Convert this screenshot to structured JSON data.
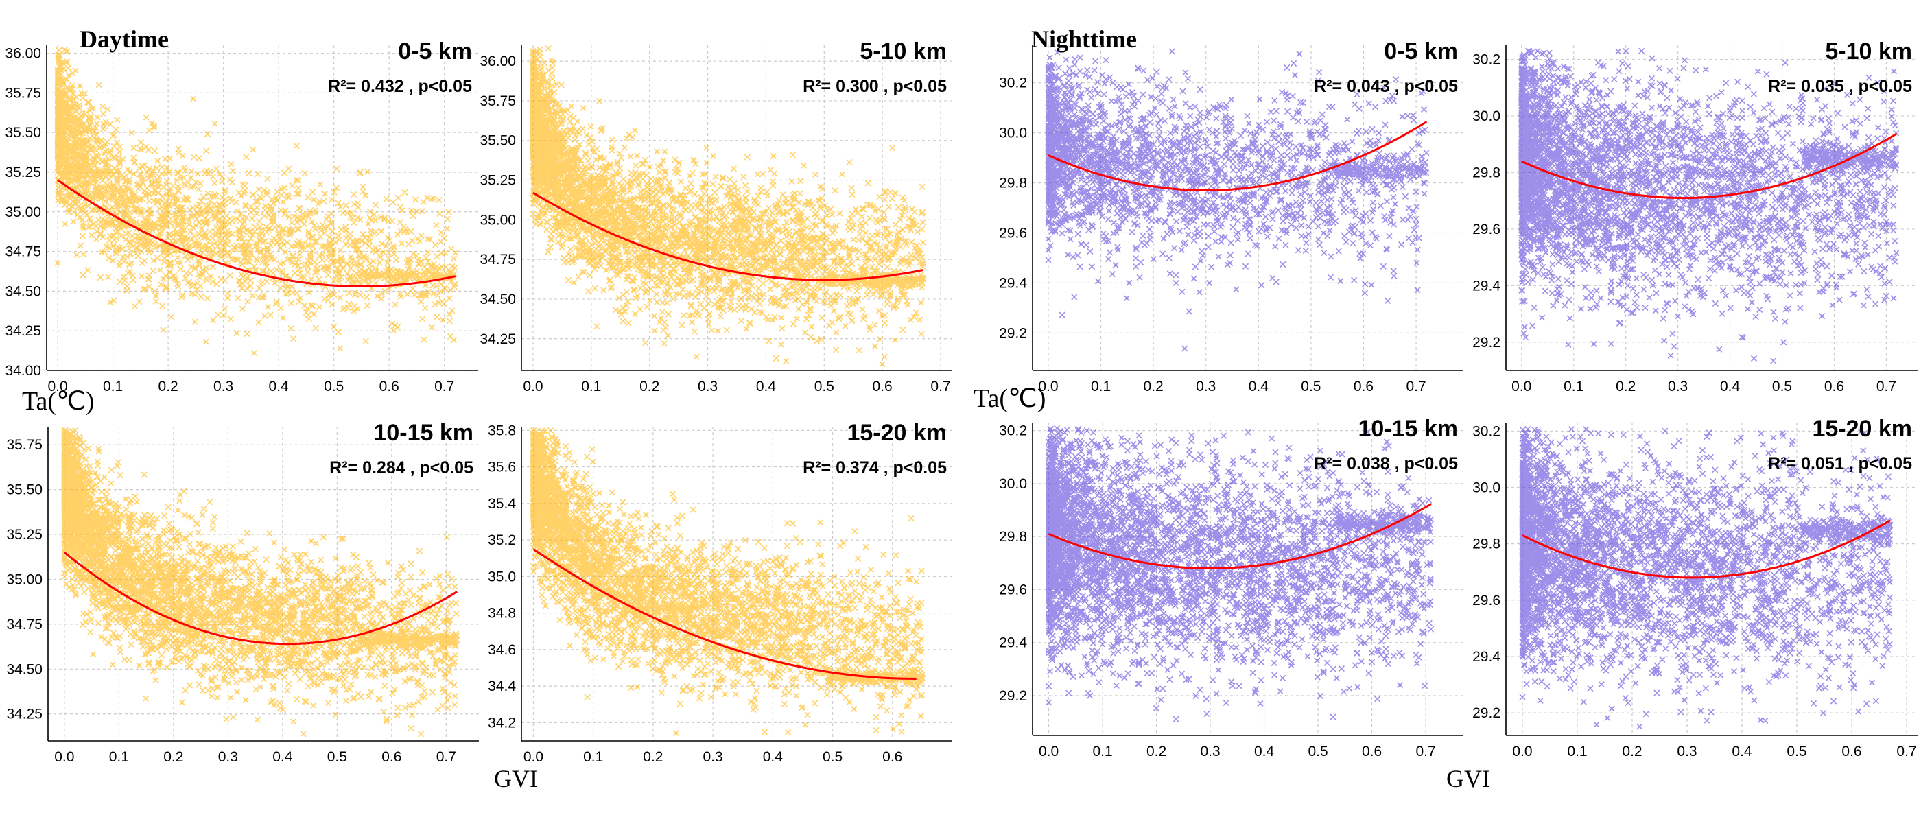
{
  "labels": {
    "daytime": "Daytime",
    "nighttime": "Nighttime",
    "ylabel": "Ta(℃)",
    "xlabel": "GVI"
  },
  "colors": {
    "day_points": "#FFB300",
    "night_points": "#5B45DB",
    "fit_line": "#FF0000",
    "grid": "#CCCCCC"
  },
  "chart_data": [
    {
      "type": "scatter",
      "group": "Daytime",
      "title": "0-5 km",
      "annotation": "R²= 0.432 , p<0.05",
      "xlim": [
        -0.02,
        0.76
      ],
      "ylim": [
        34.0,
        36.05
      ],
      "xticks": [
        "0.0",
        "0.1",
        "0.2",
        "0.3",
        "0.4",
        "0.5",
        "0.6",
        "0.7"
      ],
      "yticks": [
        "34.00",
        "34.25",
        "34.50",
        "34.75",
        "35.00",
        "35.25",
        "35.50",
        "35.75",
        "36.00"
      ],
      "fit_x": [
        0.0,
        0.72
      ],
      "fit_vertex": [
        0.55,
        34.53
      ],
      "fit_y0": 35.2,
      "n_points": 2600,
      "dist": {
        "k": 5,
        "base": 34.95,
        "peak": 0.65,
        "decay": 12,
        "slope": -1.0,
        "spread": 0.22,
        "tail": 0.72,
        "plateau": 34.6
      }
    },
    {
      "type": "scatter",
      "group": "Daytime",
      "title": "5-10 km",
      "annotation": "R²= 0.300 , p<0.05",
      "xlim": [
        -0.02,
        0.72
      ],
      "ylim": [
        34.05,
        36.1
      ],
      "xticks": [
        "0.0",
        "0.1",
        "0.2",
        "0.3",
        "0.4",
        "0.5",
        "0.6",
        "0.7"
      ],
      "yticks": [
        "34.25",
        "34.50",
        "34.75",
        "35.00",
        "35.25",
        "35.50",
        "35.75",
        "36.00"
      ],
      "fit_x": [
        0.0,
        0.67
      ],
      "fit_vertex": [
        0.5,
        34.62
      ],
      "fit_y0": 35.17,
      "n_points": 4200,
      "dist": {
        "k": 5,
        "base": 34.95,
        "peak": 0.7,
        "decay": 14,
        "slope": -0.9,
        "spread": 0.22,
        "tail": 0.67,
        "plateau": 34.62
      }
    },
    {
      "type": "scatter",
      "group": "Daytime",
      "title": "10-15 km",
      "annotation": "R²= 0.284 , p<0.05",
      "xlim": [
        -0.03,
        0.76
      ],
      "ylim": [
        34.1,
        35.85
      ],
      "xticks": [
        "0.0",
        "0.1",
        "0.2",
        "0.3",
        "0.4",
        "0.5",
        "0.6",
        "0.7"
      ],
      "yticks": [
        "34.25",
        "34.50",
        "34.75",
        "35.00",
        "35.25",
        "35.50",
        "35.75"
      ],
      "fit_x": [
        0.0,
        0.72
      ],
      "fit_vertex": [
        0.41,
        34.64
      ],
      "fit_y0": 35.15,
      "n_points": 4400,
      "dist": {
        "k": 5,
        "base": 34.92,
        "peak": 0.65,
        "decay": 13,
        "slope": -0.9,
        "spread": 0.2,
        "tail": 0.72,
        "plateau": 34.66
      }
    },
    {
      "type": "scatter",
      "group": "Daytime",
      "title": "15-20 km",
      "annotation": "R²= 0.374 , p<0.05",
      "xlim": [
        -0.02,
        0.7
      ],
      "ylim": [
        34.1,
        35.82
      ],
      "xticks": [
        "0.0",
        "0.1",
        "0.2",
        "0.3",
        "0.4",
        "0.5",
        "0.6"
      ],
      "yticks": [
        "34.2",
        "34.4",
        "34.6",
        "34.8",
        "35.0",
        "35.2",
        "35.4",
        "35.6",
        "35.8"
      ],
      "fit_x": [
        0.0,
        0.64
      ],
      "fit_vertex": [
        0.64,
        34.44
      ],
      "fit_y0": 35.15,
      "n_points": 4000,
      "dist": {
        "k": 5,
        "base": 34.92,
        "peak": 0.65,
        "decay": 13,
        "slope": -1.1,
        "spread": 0.2,
        "tail": 0.65,
        "plateau": 34.45
      }
    },
    {
      "type": "scatter",
      "group": "Nighttime",
      "title": "0-5 km",
      "annotation": "R²= 0.043 , p<0.05",
      "xlim": [
        -0.03,
        0.79
      ],
      "ylim": [
        29.05,
        30.35
      ],
      "xticks": [
        "0.0",
        "0.1",
        "0.2",
        "0.3",
        "0.4",
        "0.5",
        "0.6",
        "0.7"
      ],
      "yticks": [
        "29.2",
        "29.4",
        "29.6",
        "29.8",
        "30.0",
        "30.2"
      ],
      "fit_x": [
        0.0,
        0.72
      ],
      "fit_vertex": [
        0.3,
        29.77
      ],
      "fit_y0": 29.91,
      "n_points": 2600,
      "dist": {
        "k": 5,
        "base": 29.85,
        "peak": 0.1,
        "decay": 10,
        "slope": -0.2,
        "spread": 0.17,
        "tail": 0.72,
        "plateau": 29.85
      }
    },
    {
      "type": "scatter",
      "group": "Nighttime",
      "title": "5-10 km",
      "annotation": "R²= 0.035 , p<0.05",
      "xlim": [
        -0.03,
        0.76
      ],
      "ylim": [
        29.1,
        30.25
      ],
      "xticks": [
        "0.0",
        "0.1",
        "0.2",
        "0.3",
        "0.4",
        "0.5",
        "0.6",
        "0.7"
      ],
      "yticks": [
        "29.2",
        "29.4",
        "29.6",
        "29.8",
        "30.0",
        "30.2"
      ],
      "fit_x": [
        0.0,
        0.72
      ],
      "fit_vertex": [
        0.31,
        29.71
      ],
      "fit_y0": 29.84,
      "n_points": 4200,
      "dist": {
        "k": 5,
        "base": 29.75,
        "peak": 0.1,
        "decay": 10,
        "slope": -0.2,
        "spread": 0.19,
        "tail": 0.72,
        "plateau": 29.85
      }
    },
    {
      "type": "scatter",
      "group": "Nighttime",
      "title": "10-15 km",
      "annotation": "R²= 0.038 , p<0.05",
      "xlim": [
        -0.03,
        0.77
      ],
      "ylim": [
        29.05,
        30.23
      ],
      "xticks": [
        "0.0",
        "0.1",
        "0.2",
        "0.3",
        "0.4",
        "0.5",
        "0.6",
        "0.7"
      ],
      "yticks": [
        "29.2",
        "29.4",
        "29.6",
        "29.8",
        "30.0",
        "30.2"
      ],
      "fit_x": [
        0.0,
        0.71
      ],
      "fit_vertex": [
        0.3,
        29.68
      ],
      "fit_y0": 29.81,
      "n_points": 4400,
      "dist": {
        "k": 5,
        "base": 29.72,
        "peak": 0.1,
        "decay": 10,
        "slope": -0.2,
        "spread": 0.2,
        "tail": 0.71,
        "plateau": 29.85
      }
    },
    {
      "type": "scatter",
      "group": "Nighttime",
      "title": "15-20 km",
      "annotation": "R²= 0.051 , p<0.05",
      "xlim": [
        -0.03,
        0.72
      ],
      "ylim": [
        29.12,
        30.23
      ],
      "xticks": [
        "0.0",
        "0.1",
        "0.2",
        "0.3",
        "0.4",
        "0.5",
        "0.6",
        "0.7"
      ],
      "yticks": [
        "29.2",
        "29.4",
        "29.6",
        "29.8",
        "30.0",
        "30.2"
      ],
      "fit_x": [
        0.0,
        0.67
      ],
      "fit_vertex": [
        0.31,
        29.68
      ],
      "fit_y0": 29.83,
      "n_points": 4000,
      "dist": {
        "k": 5,
        "base": 29.72,
        "peak": 0.1,
        "decay": 10,
        "slope": -0.2,
        "spread": 0.2,
        "tail": 0.67,
        "plateau": 29.85
      }
    }
  ]
}
